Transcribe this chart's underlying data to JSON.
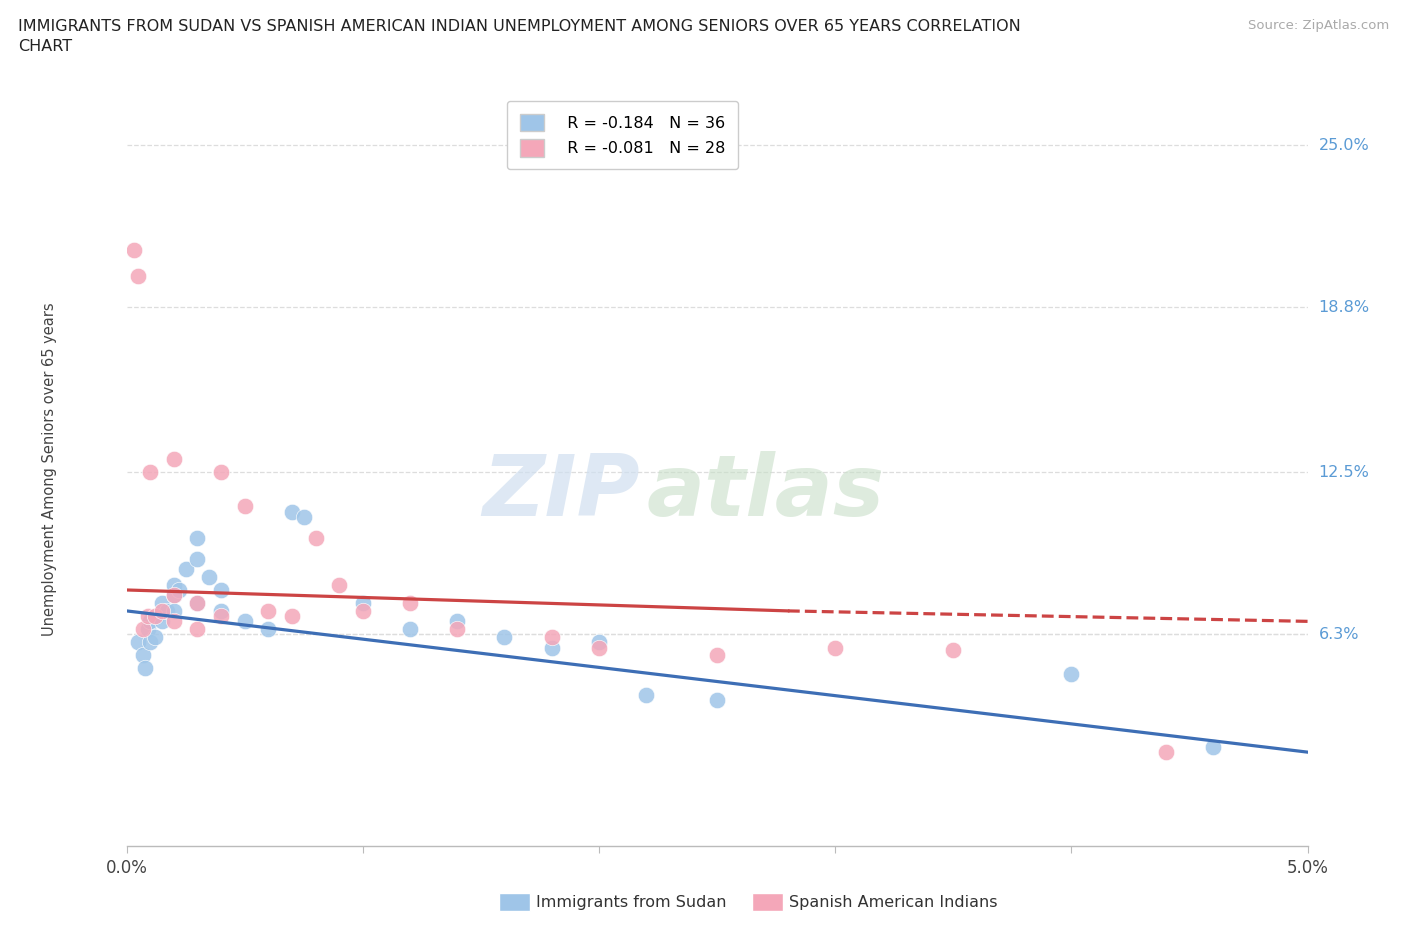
{
  "title_line1": "IMMIGRANTS FROM SUDAN VS SPANISH AMERICAN INDIAN UNEMPLOYMENT AMONG SENIORS OVER 65 YEARS CORRELATION",
  "title_line2": "CHART",
  "source": "Source: ZipAtlas.com",
  "ylabel_text": "Unemployment Among Seniors over 65 years",
  "xmin": 0.0,
  "xmax": 0.05,
  "ymin": -0.018,
  "ymax": 0.27,
  "ytick_vals": [
    0.25,
    0.188,
    0.125,
    0.063
  ],
  "ytick_labels": [
    "25.0%",
    "18.8%",
    "12.5%",
    "6.3%"
  ],
  "blue_color": "#9fc5e8",
  "pink_color": "#f4a7b9",
  "blue_line_color": "#3d6eb5",
  "pink_line_color": "#cc4444",
  "legend_blue_r": "R = -0.184",
  "legend_blue_n": "N = 36",
  "legend_pink_r": "R = -0.081",
  "legend_pink_n": "N = 28",
  "watermark_zip": "ZIP",
  "watermark_atlas": "atlas",
  "blue_scatter": [
    [
      0.0005,
      0.06
    ],
    [
      0.0007,
      0.055
    ],
    [
      0.0008,
      0.05
    ],
    [
      0.0009,
      0.065
    ],
    [
      0.001,
      0.06
    ],
    [
      0.001,
      0.068
    ],
    [
      0.0012,
      0.062
    ],
    [
      0.0013,
      0.07
    ],
    [
      0.0015,
      0.068
    ],
    [
      0.0015,
      0.075
    ],
    [
      0.0017,
      0.072
    ],
    [
      0.002,
      0.078
    ],
    [
      0.002,
      0.082
    ],
    [
      0.002,
      0.072
    ],
    [
      0.0022,
      0.08
    ],
    [
      0.0025,
      0.088
    ],
    [
      0.003,
      0.092
    ],
    [
      0.003,
      0.1
    ],
    [
      0.003,
      0.075
    ],
    [
      0.0035,
      0.085
    ],
    [
      0.004,
      0.08
    ],
    [
      0.004,
      0.072
    ],
    [
      0.005,
      0.068
    ],
    [
      0.006,
      0.065
    ],
    [
      0.007,
      0.11
    ],
    [
      0.0075,
      0.108
    ],
    [
      0.01,
      0.075
    ],
    [
      0.012,
      0.065
    ],
    [
      0.014,
      0.068
    ],
    [
      0.016,
      0.062
    ],
    [
      0.018,
      0.058
    ],
    [
      0.02,
      0.06
    ],
    [
      0.022,
      0.04
    ],
    [
      0.025,
      0.038
    ],
    [
      0.04,
      0.048
    ],
    [
      0.046,
      0.02
    ]
  ],
  "pink_scatter": [
    [
      0.0003,
      0.21
    ],
    [
      0.0005,
      0.2
    ],
    [
      0.0007,
      0.065
    ],
    [
      0.0009,
      0.07
    ],
    [
      0.001,
      0.125
    ],
    [
      0.0012,
      0.07
    ],
    [
      0.0015,
      0.072
    ],
    [
      0.002,
      0.078
    ],
    [
      0.002,
      0.13
    ],
    [
      0.002,
      0.068
    ],
    [
      0.003,
      0.075
    ],
    [
      0.003,
      0.065
    ],
    [
      0.004,
      0.125
    ],
    [
      0.004,
      0.07
    ],
    [
      0.005,
      0.112
    ],
    [
      0.006,
      0.072
    ],
    [
      0.007,
      0.07
    ],
    [
      0.008,
      0.1
    ],
    [
      0.009,
      0.082
    ],
    [
      0.01,
      0.072
    ],
    [
      0.012,
      0.075
    ],
    [
      0.014,
      0.065
    ],
    [
      0.018,
      0.062
    ],
    [
      0.02,
      0.058
    ],
    [
      0.025,
      0.055
    ],
    [
      0.03,
      0.058
    ],
    [
      0.035,
      0.057
    ],
    [
      0.044,
      0.018
    ]
  ],
  "blue_trend_x": [
    0.0,
    0.05
  ],
  "blue_trend_y": [
    0.072,
    0.018
  ],
  "pink_trend_x": [
    0.0,
    0.028,
    0.05
  ],
  "pink_trend_y": [
    0.08,
    0.072,
    0.068
  ],
  "pink_trend_solid_end": 0.028
}
